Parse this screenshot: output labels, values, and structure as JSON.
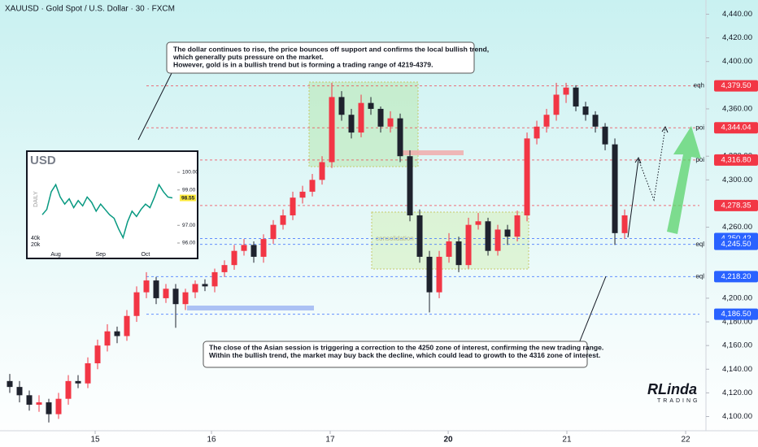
{
  "chart_data": {
    "type": "candlestick",
    "title": "XAUUSD · Gold Spot / U.S. Dollar · 30 · FXCM",
    "up_color": "#f23645",
    "down_color": "#1e222d",
    "open": [
      4130,
      4125,
      4118,
      4110,
      4112,
      4102,
      4115,
      4130,
      4128,
      4145,
      4160,
      4172,
      4168,
      4185,
      4205,
      4215,
      4200,
      4208,
      4195,
      4205,
      4212,
      4210,
      4222,
      4228,
      4240,
      4245,
      4235,
      4250,
      4262,
      4270,
      4285,
      4290,
      4300,
      4315,
      4370,
      4355,
      4340,
      4365,
      4360,
      4345,
      4352,
      4320,
      4270,
      4235,
      4205,
      4235,
      4248,
      4228,
      4262,
      4265,
      4240,
      4258,
      4252,
      4270,
      4335,
      4345,
      4355,
      4372,
      4378,
      4362,
      4355,
      4345,
      4330,
      4255
    ],
    "high": [
      4136,
      4130,
      4122,
      4118,
      4115,
      4120,
      4135,
      4135,
      4150,
      4165,
      4178,
      4176,
      4190,
      4210,
      4222,
      4218,
      4212,
      4212,
      4208,
      4215,
      4216,
      4225,
      4232,
      4245,
      4250,
      4248,
      4254,
      4266,
      4275,
      4290,
      4295,
      4305,
      4320,
      4382,
      4375,
      4360,
      4372,
      4370,
      4362,
      4358,
      4356,
      4325,
      4275,
      4240,
      4240,
      4255,
      4252,
      4268,
      4272,
      4268,
      4262,
      4262,
      4274,
      4340,
      4350,
      4360,
      4382,
      4382,
      4380,
      4366,
      4358,
      4348,
      4335,
      4275
    ],
    "low": [
      4120,
      4112,
      4105,
      4104,
      4095,
      4098,
      4110,
      4124,
      4124,
      4140,
      4155,
      4162,
      4164,
      4180,
      4200,
      4195,
      4196,
      4175,
      4190,
      4200,
      4206,
      4205,
      4218,
      4224,
      4236,
      4230,
      4230,
      4246,
      4258,
      4266,
      4280,
      4286,
      4296,
      4310,
      4350,
      4335,
      4336,
      4355,
      4340,
      4340,
      4315,
      4265,
      4230,
      4188,
      4200,
      4230,
      4222,
      4225,
      4258,
      4236,
      4236,
      4245,
      4248,
      4265,
      4330,
      4340,
      4350,
      4365,
      4358,
      4350,
      4340,
      4325,
      4245,
      4250
    ],
    "close": [
      4125,
      4118,
      4110,
      4112,
      4102,
      4115,
      4130,
      4128,
      4145,
      4160,
      4172,
      4168,
      4185,
      4205,
      4215,
      4200,
      4208,
      4195,
      4205,
      4212,
      4210,
      4222,
      4228,
      4240,
      4245,
      4235,
      4250,
      4262,
      4270,
      4285,
      4290,
      4300,
      4315,
      4370,
      4355,
      4340,
      4365,
      4360,
      4345,
      4352,
      4320,
      4270,
      4235,
      4205,
      4235,
      4248,
      4228,
      4262,
      4265,
      4240,
      4258,
      4252,
      4270,
      4335,
      4345,
      4355,
      4372,
      4378,
      4362,
      4355,
      4345,
      4330,
      4255,
      4270
    ],
    "xlim": [
      -1,
      71.33
    ],
    "xticks": [
      {
        "value": 8.75,
        "label": "15"
      },
      {
        "value": 20.67,
        "label": "16"
      },
      {
        "value": 32.83,
        "label": "17"
      },
      {
        "value": 44.92,
        "label": "20"
      },
      {
        "value": 57.08,
        "label": "21"
      },
      {
        "value": 69.25,
        "label": "22"
      }
    ],
    "ylim": [
      4088,
      4452
    ],
    "yticks": [
      {
        "value": 4100,
        "label": "4,100.00"
      },
      {
        "value": 4120,
        "label": "4,120.00"
      },
      {
        "value": 4140,
        "label": "4,140.00"
      },
      {
        "value": 4160,
        "label": "4,160.00"
      },
      {
        "value": 4180,
        "label": "4,180.00"
      },
      {
        "value": 4200,
        "label": "4,200.00"
      },
      {
        "value": 4260,
        "label": "4,260.00"
      },
      {
        "value": 4300,
        "label": "4,300.00"
      },
      {
        "value": 4320,
        "label": "4,320.00"
      },
      {
        "value": 4360,
        "label": "4,360.00"
      },
      {
        "value": 4400,
        "label": "4,400.00"
      },
      {
        "value": 4420,
        "label": "4,420.00"
      },
      {
        "value": 4440,
        "label": "4,440.00"
      }
    ],
    "levels": [
      {
        "value": 4379.5,
        "label": "4,379.50",
        "tag": "eqh",
        "color": "#f23645"
      },
      {
        "value": 4344.04,
        "label": "4,344.04",
        "tag": "poi",
        "color": "#f23645"
      },
      {
        "value": 4316.8,
        "label": "4,316.80",
        "tag": "poi",
        "color": "#f23645"
      },
      {
        "value": 4278.35,
        "label": "4,278.35",
        "color": "#f23645"
      },
      {
        "value": 4250.42,
        "label": "4,250.42",
        "color": "#2962ff"
      },
      {
        "value": 4245.5,
        "label": "4,245.50",
        "tag": "eql",
        "color": "#2962ff"
      },
      {
        "value": 4218.2,
        "label": "4,218.20",
        "tag": "eql",
        "color": "#2962ff"
      },
      {
        "value": 4186.5,
        "label": "4,186.50",
        "color": "#2962ff"
      }
    ],
    "zone_label": "consolidation",
    "annotations": [
      [
        "The dollar continues to rise, the price bounces off support and confirms the local bullish trend,",
        "which generally puts pressure on the market.",
        "However, gold is in a bullish trend but is forming a trading range of 4219-4379."
      ],
      [
        "The close of the Asian session is triggering a correction to the 4250 zone of interest, confirming the new trading range.",
        "Within the bullish trend, the market may buy back the decline, which could lead to growth to the 4316 zone of interest."
      ]
    ],
    "inset": {
      "title": "USD",
      "timeframe": "DAILY",
      "values": [
        97.6,
        97.9,
        98.9,
        99.3,
        98.6,
        98.2,
        98.5,
        98.0,
        98.4,
        98.1,
        98.6,
        98.3,
        97.8,
        98.2,
        97.9,
        97.6,
        97.4,
        96.8,
        96.3,
        97.2,
        97.8,
        97.5,
        97.9,
        98.2,
        98.0,
        98.6,
        99.3,
        98.9,
        98.6,
        98.55
      ],
      "value_labels": {
        "29": "98.55"
      },
      "ylim": [
        95.4,
        100.6
      ],
      "yticks": [
        {
          "value": 100,
          "label": "100.00"
        },
        {
          "value": 99,
          "label": "99.00"
        },
        {
          "value": 97,
          "label": "97.00"
        },
        {
          "value": 96,
          "label": "96.00"
        }
      ],
      "xticks": [
        {
          "value": 3,
          "label": "Aug"
        },
        {
          "value": 13,
          "label": "Sep"
        },
        {
          "value": 23,
          "label": "Oct"
        }
      ],
      "volume_ticks": [
        "40k",
        "20k"
      ]
    },
    "logo": {
      "name": "RLinda",
      "sub": "TRADING"
    }
  }
}
